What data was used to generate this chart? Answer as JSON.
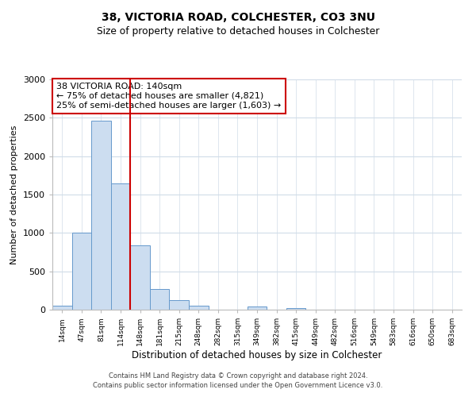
{
  "title1": "38, VICTORIA ROAD, COLCHESTER, CO3 3NU",
  "title2": "Size of property relative to detached houses in Colchester",
  "xlabel": "Distribution of detached houses by size in Colchester",
  "ylabel": "Number of detached properties",
  "bar_labels": [
    "14sqm",
    "47sqm",
    "81sqm",
    "114sqm",
    "148sqm",
    "181sqm",
    "215sqm",
    "248sqm",
    "282sqm",
    "315sqm",
    "349sqm",
    "382sqm",
    "415sqm",
    "449sqm",
    "482sqm",
    "516sqm",
    "549sqm",
    "583sqm",
    "616sqm",
    "650sqm",
    "683sqm"
  ],
  "bar_values": [
    55,
    1000,
    2460,
    1640,
    840,
    270,
    120,
    50,
    5,
    5,
    40,
    5,
    18,
    0,
    0,
    0,
    0,
    0,
    0,
    0,
    0
  ],
  "bar_color": "#ccddf0",
  "bar_edge_color": "#6699cc",
  "vline_x_index": 3.5,
  "vline_color": "#cc0000",
  "annotation_title": "38 VICTORIA ROAD: 140sqm",
  "annotation_line1": "← 75% of detached houses are smaller (4,821)",
  "annotation_line2": "25% of semi-detached houses are larger (1,603) →",
  "annotation_box_edge": "#cc0000",
  "ylim": [
    0,
    3000
  ],
  "yticks": [
    0,
    500,
    1000,
    1500,
    2000,
    2500,
    3000
  ],
  "footer1": "Contains HM Land Registry data © Crown copyright and database right 2024.",
  "footer2": "Contains public sector information licensed under the Open Government Licence v3.0.",
  "bg_color": "#ffffff",
  "grid_color": "#d0dce8"
}
